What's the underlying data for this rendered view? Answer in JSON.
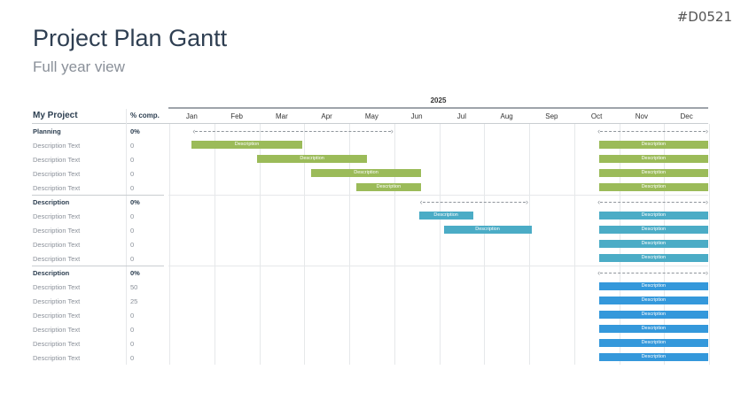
{
  "code": "#D0521",
  "title": "Project Plan Gantt",
  "subtitle": "Full year view",
  "year": "2025",
  "header": {
    "project": "My Project",
    "pct": "% comp."
  },
  "months": [
    "Jan",
    "Feb",
    "Mar",
    "Apr",
    "May",
    "Jun",
    "Jul",
    "Aug",
    "Sep",
    "Oct",
    "Nov",
    "Dec"
  ],
  "colors": {
    "green": "#9bbb59",
    "teal": "#4bacc6",
    "blue": "#3498db"
  },
  "groups": [
    {
      "name": "Planning",
      "pct": "0%",
      "color": "#9bbb59",
      "spans": [
        [
          0.5,
          5.0
        ],
        [
          9.5,
          12.0
        ]
      ],
      "tasks": [
        {
          "label": "Description Text",
          "pct": "0",
          "bars": [
            {
              "s": 0.5,
              "e": 2.95,
              "t": "Description"
            },
            {
              "s": 9.55,
              "e": 12.0,
              "t": "Description"
            }
          ]
        },
        {
          "label": "Description Text",
          "pct": "0",
          "bars": [
            {
              "s": 1.95,
              "e": 4.4,
              "t": "Description"
            },
            {
              "s": 9.55,
              "e": 12.0,
              "t": "Description"
            }
          ]
        },
        {
          "label": "Description Text",
          "pct": "0",
          "bars": [
            {
              "s": 3.15,
              "e": 5.6,
              "t": "Description"
            },
            {
              "s": 9.55,
              "e": 12.0,
              "t": "Description"
            }
          ]
        },
        {
          "label": "Description Text",
          "pct": "0",
          "bars": [
            {
              "s": 4.15,
              "e": 5.6,
              "t": "Description"
            },
            {
              "s": 9.55,
              "e": 12.0,
              "t": "Description"
            }
          ]
        }
      ]
    },
    {
      "name": "Description",
      "pct": "0%",
      "color": "#4bacc6",
      "spans": [
        [
          5.55,
          8.0
        ],
        [
          9.5,
          12.0
        ]
      ],
      "tasks": [
        {
          "label": "Description Text",
          "pct": "0",
          "bars": [
            {
              "s": 5.55,
              "e": 6.75,
              "t": "Description"
            },
            {
              "s": 9.55,
              "e": 12.0,
              "t": "Description"
            }
          ]
        },
        {
          "label": "Description Text",
          "pct": "0",
          "bars": [
            {
              "s": 6.1,
              "e": 8.05,
              "t": "Description"
            },
            {
              "s": 9.55,
              "e": 12.0,
              "t": "Description"
            }
          ]
        },
        {
          "label": "Description Text",
          "pct": "0",
          "bars": [
            {
              "s": 9.55,
              "e": 12.0,
              "t": "Description"
            }
          ]
        },
        {
          "label": "Description Text",
          "pct": "0",
          "bars": [
            {
              "s": 9.55,
              "e": 12.0,
              "t": "Description"
            }
          ]
        }
      ]
    },
    {
      "name": "Description",
      "pct": "0%",
      "color": "#3498db",
      "spans": [
        [
          9.5,
          12.0
        ]
      ],
      "tasks": [
        {
          "label": "Description Text",
          "pct": "50",
          "bars": [
            {
              "s": 9.55,
              "e": 12.0,
              "t": "Description"
            }
          ]
        },
        {
          "label": "Description Text",
          "pct": "25",
          "bars": [
            {
              "s": 9.55,
              "e": 12.0,
              "t": "Description"
            }
          ]
        },
        {
          "label": "Description Text",
          "pct": "0",
          "bars": [
            {
              "s": 9.55,
              "e": 12.0,
              "t": "Description"
            }
          ]
        },
        {
          "label": "Description Text",
          "pct": "0",
          "bars": [
            {
              "s": 9.55,
              "e": 12.0,
              "t": "Description"
            }
          ]
        },
        {
          "label": "Description Text",
          "pct": "0",
          "bars": [
            {
              "s": 9.55,
              "e": 12.0,
              "t": "Description"
            }
          ]
        },
        {
          "label": "Description Text",
          "pct": "0",
          "bars": [
            {
              "s": 9.55,
              "e": 12.0,
              "t": "Description"
            }
          ]
        }
      ]
    }
  ]
}
